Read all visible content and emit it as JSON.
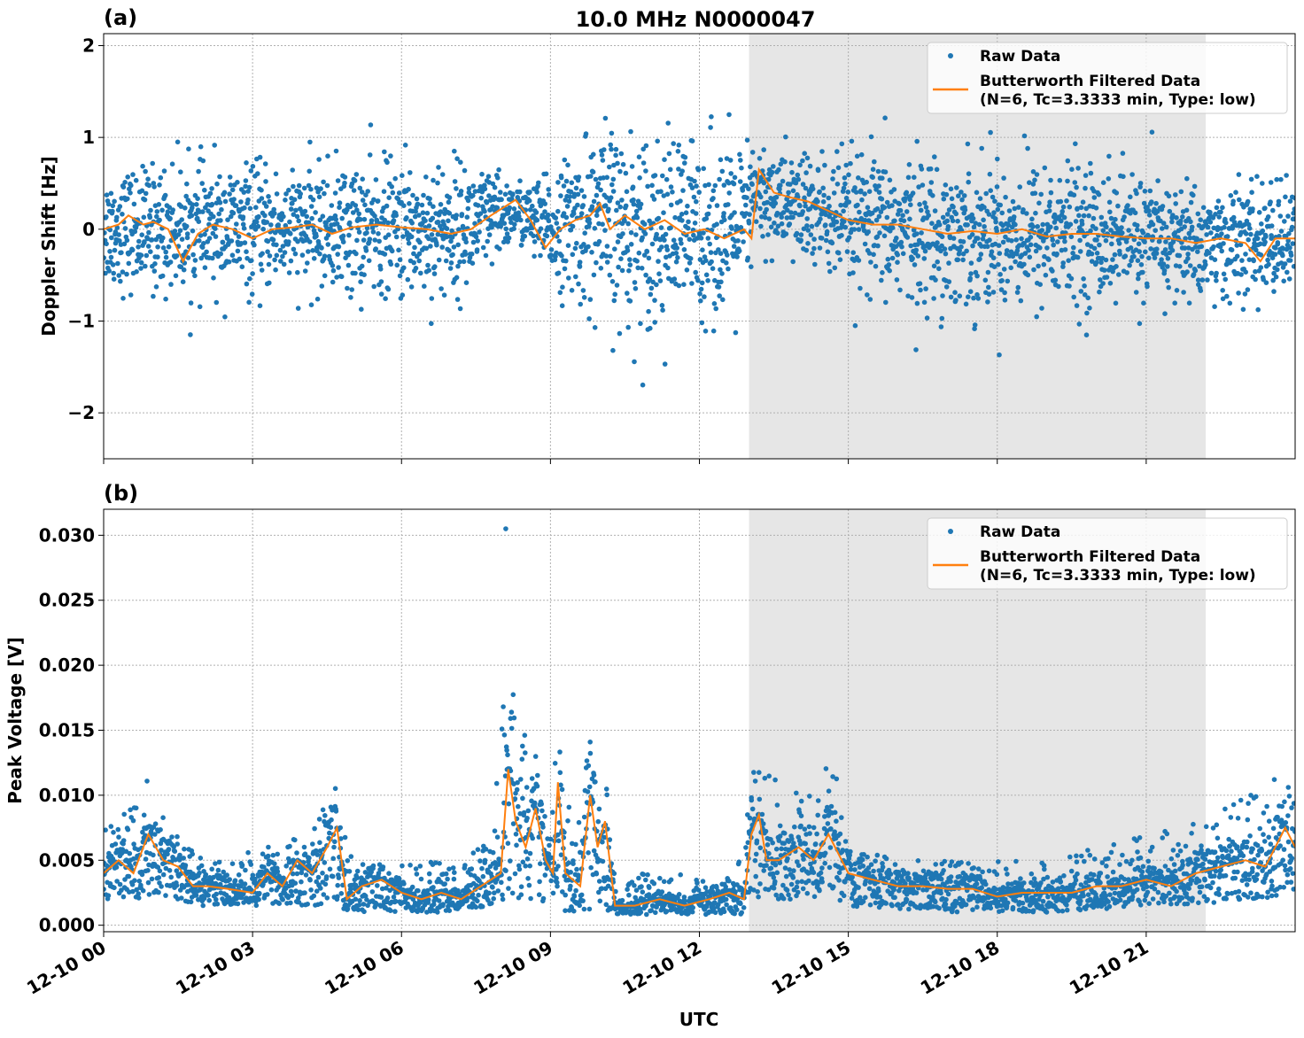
{
  "title": "10.0 MHz N0000047",
  "colors": {
    "raw": "#1f77b4",
    "filtered": "#ff7f0e",
    "shade": "#e6e6e6"
  },
  "chart_data": [
    {
      "type": "scatter+line",
      "panel_label": "(a)",
      "ylabel": "Doppler Shift [Hz]",
      "xlabel": "",
      "ylim": [
        -2.5,
        2.13
      ],
      "xlim_hours": [
        0,
        24
      ],
      "yticks": [
        {
          "v": 2,
          "label": "2"
        },
        {
          "v": 1,
          "label": "1"
        },
        {
          "v": 0,
          "label": "0"
        },
        {
          "v": -1,
          "label": "−1"
        },
        {
          "v": -2,
          "label": "−2"
        }
      ],
      "grid": true,
      "legend_position": "top-right",
      "shaded_region_hours": [
        13.0,
        22.2
      ],
      "series": [
        {
          "name": "Raw Data",
          "kind": "scatter",
          "envelope_hours": [
            0,
            1,
            2,
            3,
            4,
            5,
            6,
            7,
            7.8,
            8.3,
            9,
            10,
            10.3,
            11,
            12,
            12.9,
            13.1,
            14,
            15,
            16,
            17,
            18,
            19,
            20,
            21,
            22,
            23,
            24
          ],
          "band_center": [
            0,
            0,
            0,
            0,
            0,
            0,
            0,
            0,
            0.1,
            0.2,
            0,
            0.1,
            0,
            0,
            0,
            0,
            0.35,
            0.25,
            0.05,
            0,
            -0.05,
            -0.05,
            -0.05,
            -0.05,
            -0.1,
            -0.15,
            -0.15,
            -0.1
          ],
          "band_halfwidth": [
            0.5,
            0.55,
            0.55,
            0.55,
            0.5,
            0.6,
            0.6,
            0.6,
            0.45,
            0.25,
            0.45,
            0.85,
            0.85,
            0.85,
            0.8,
            0.75,
            0.45,
            0.5,
            0.6,
            0.65,
            0.65,
            0.65,
            0.65,
            0.6,
            0.55,
            0.5,
            0.5,
            0.5
          ]
        },
        {
          "name": "Butterworth Filtered Data\n(N=6, Tc=3.3333 min, Type: low)",
          "kind": "line",
          "x_hours": [
            0,
            0.3,
            0.5,
            0.8,
            1,
            1.3,
            1.6,
            1.9,
            2.2,
            2.6,
            3,
            3.4,
            3.8,
            4.2,
            4.6,
            5,
            5.5,
            6,
            6.5,
            7,
            7.4,
            7.8,
            8.3,
            8.6,
            8.9,
            9.2,
            9.5,
            9.8,
            10,
            10.2,
            10.5,
            10.9,
            11.3,
            11.7,
            12.1,
            12.5,
            12.9,
            13.05,
            13.2,
            13.5,
            13.8,
            14.2,
            14.6,
            15,
            15.5,
            16,
            16.5,
            17,
            17.5,
            18,
            18.5,
            19,
            19.5,
            20,
            20.5,
            21,
            21.5,
            22,
            22.5,
            23,
            23.3,
            23.6,
            24
          ],
          "values": [
            0,
            0.05,
            0.15,
            0.05,
            0.08,
            0,
            -0.35,
            -0.05,
            0.05,
            0,
            -0.1,
            0,
            0.02,
            0.05,
            -0.05,
            0.02,
            0.05,
            0.02,
            0,
            -0.05,
            0,
            0.15,
            0.32,
            0.1,
            -0.2,
            0,
            0.1,
            0.15,
            0.28,
            0,
            0.15,
            0,
            0.1,
            -0.05,
            0,
            -0.1,
            0,
            -0.1,
            0.65,
            0.4,
            0.35,
            0.3,
            0.2,
            0.1,
            0.05,
            0.05,
            0,
            -0.05,
            -0.02,
            -0.05,
            0,
            -0.08,
            -0.05,
            -0.05,
            -0.08,
            -0.1,
            -0.1,
            -0.15,
            -0.1,
            -0.15,
            -0.35,
            -0.1,
            -0.1
          ]
        }
      ]
    },
    {
      "type": "scatter+line",
      "panel_label": "(b)",
      "ylabel": "Peak Voltage [V]",
      "xlabel": "UTC",
      "ylim": [
        -0.0005,
        0.032
      ],
      "xlim_hours": [
        0,
        24
      ],
      "yticks": [
        {
          "v": 0,
          "label": "0.000"
        },
        {
          "v": 0.005,
          "label": "0.005"
        },
        {
          "v": 0.01,
          "label": "0.010"
        },
        {
          "v": 0.015,
          "label": "0.015"
        },
        {
          "v": 0.02,
          "label": "0.020"
        },
        {
          "v": 0.025,
          "label": "0.025"
        },
        {
          "v": 0.03,
          "label": "0.030"
        }
      ],
      "xticks": [
        {
          "h": 0,
          "label": "12-10 00"
        },
        {
          "h": 3,
          "label": "12-10 03"
        },
        {
          "h": 6,
          "label": "12-10 06"
        },
        {
          "h": 9,
          "label": "12-10 09"
        },
        {
          "h": 12,
          "label": "12-10 12"
        },
        {
          "h": 15,
          "label": "12-10 15"
        },
        {
          "h": 18,
          "label": "12-10 18"
        },
        {
          "h": 21,
          "label": "12-10 21"
        }
      ],
      "grid": true,
      "legend_position": "top-right",
      "shaded_region_hours": [
        13.0,
        22.2
      ],
      "series": [
        {
          "name": "Raw Data",
          "kind": "scatter",
          "envelope_hours": [
            0,
            0.9,
            1.5,
            2,
            3,
            4,
            4.7,
            5,
            6,
            7,
            7.8,
            8.1,
            8.5,
            9,
            9.1,
            9.5,
            9.8,
            10.1,
            11,
            12,
            12.9,
            13.1,
            13.3,
            14,
            14.7,
            15,
            16,
            17,
            18,
            19,
            20,
            21,
            22,
            23,
            23.8,
            24
          ],
          "band_low": [
            0.002,
            0.002,
            0.002,
            0.0015,
            0.0015,
            0.0015,
            0.0015,
            0.001,
            0.001,
            0.001,
            0.0015,
            0.002,
            0.002,
            0.001,
            0.001,
            0.001,
            0.001,
            0.0008,
            0.0008,
            0.0008,
            0.0008,
            0.002,
            0.002,
            0.002,
            0.002,
            0.0015,
            0.0012,
            0.001,
            0.001,
            0.001,
            0.0012,
            0.0015,
            0.0015,
            0.002,
            0.002,
            0.002
          ],
          "band_high": [
            0.008,
            0.012,
            0.007,
            0.005,
            0.006,
            0.007,
            0.011,
            0.005,
            0.005,
            0.005,
            0.007,
            0.022,
            0.015,
            0.008,
            0.015,
            0.009,
            0.015,
            0.004,
            0.004,
            0.004,
            0.005,
            0.016,
            0.013,
            0.01,
            0.013,
            0.007,
            0.005,
            0.005,
            0.005,
            0.005,
            0.006,
            0.007,
            0.008,
            0.01,
            0.012,
            0.011
          ],
          "max_value": 0.0305
        },
        {
          "name": "Butterworth Filtered Data\n(N=6, Tc=3.3333 min, Type: low)",
          "kind": "line",
          "x_hours": [
            0,
            0.3,
            0.6,
            0.9,
            1.2,
            1.5,
            1.8,
            2.1,
            2.5,
            3,
            3.3,
            3.6,
            3.9,
            4.2,
            4.5,
            4.7,
            4.9,
            5.2,
            5.6,
            6,
            6.4,
            6.8,
            7.2,
            7.6,
            8,
            8.15,
            8.3,
            8.5,
            8.7,
            8.9,
            9.05,
            9.15,
            9.3,
            9.6,
            9.8,
            9.95,
            10.1,
            10.3,
            10.7,
            11.2,
            11.7,
            12.2,
            12.6,
            12.9,
            13.05,
            13.2,
            13.35,
            13.6,
            14,
            14.3,
            14.6,
            15,
            15.5,
            16,
            16.5,
            17,
            17.5,
            18,
            18.5,
            19,
            19.5,
            20,
            20.5,
            21,
            21.5,
            22,
            22.5,
            23,
            23.4,
            23.8,
            24
          ],
          "values": [
            0.004,
            0.005,
            0.004,
            0.007,
            0.005,
            0.0045,
            0.003,
            0.003,
            0.0028,
            0.0025,
            0.004,
            0.003,
            0.005,
            0.004,
            0.006,
            0.0075,
            0.002,
            0.003,
            0.0035,
            0.0025,
            0.002,
            0.0025,
            0.002,
            0.003,
            0.004,
            0.012,
            0.008,
            0.006,
            0.009,
            0.005,
            0.004,
            0.011,
            0.004,
            0.003,
            0.01,
            0.006,
            0.008,
            0.0015,
            0.0015,
            0.002,
            0.0015,
            0.002,
            0.0025,
            0.002,
            0.007,
            0.0085,
            0.005,
            0.005,
            0.006,
            0.005,
            0.007,
            0.004,
            0.0035,
            0.003,
            0.003,
            0.0028,
            0.0028,
            0.0022,
            0.0025,
            0.0025,
            0.0025,
            0.003,
            0.003,
            0.0035,
            0.003,
            0.004,
            0.0045,
            0.005,
            0.0045,
            0.0075,
            0.006
          ]
        }
      ]
    }
  ]
}
